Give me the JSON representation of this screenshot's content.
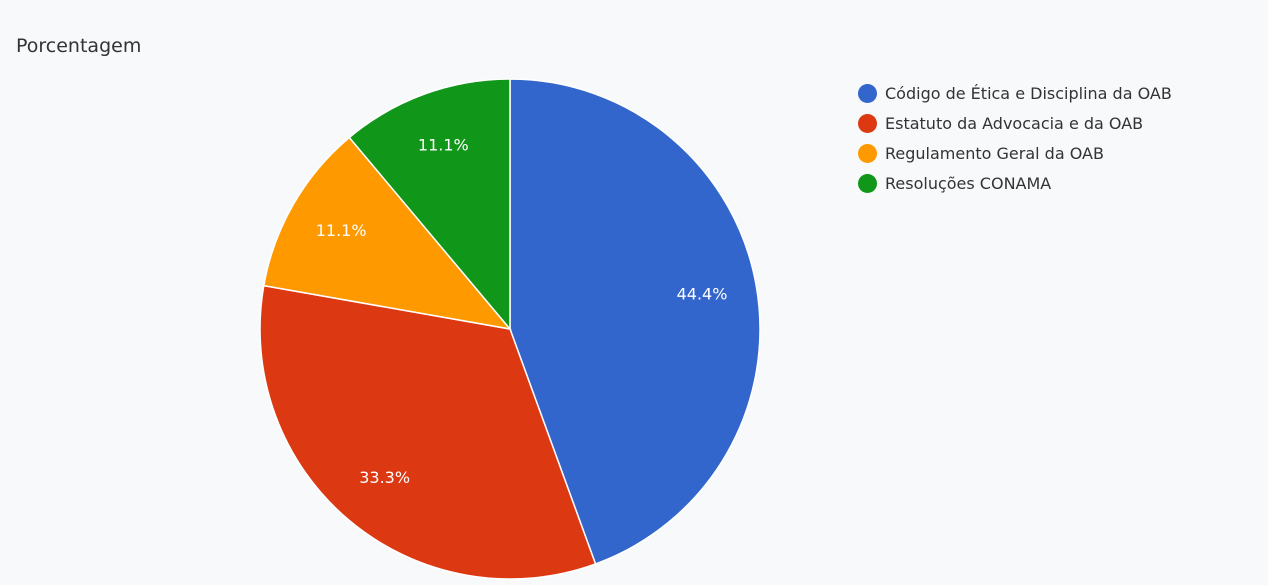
{
  "chart_data": {
    "type": "pie",
    "title": "Porcentagem",
    "legend_position": "right",
    "slices": [
      {
        "label": "Código de Ética e Disciplina da OAB",
        "value": 44.4,
        "value_label": "44.4%",
        "color": "#3366cc"
      },
      {
        "label": "Estatuto da Advocacia e da OAB",
        "value": 33.3,
        "value_label": "33.3%",
        "color": "#dc3912"
      },
      {
        "label": "Regulamento Geral da OAB",
        "value": 11.1,
        "value_label": "11.1%",
        "color": "#ff9900"
      },
      {
        "label": "Resoluções CONAMA",
        "value": 11.1,
        "value_label": "11.1%",
        "color": "#109618"
      }
    ]
  }
}
